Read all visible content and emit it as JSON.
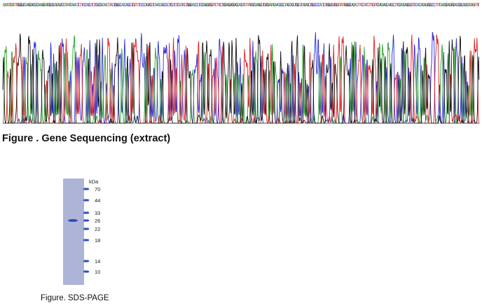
{
  "sequencing": {
    "sequence": "GAATTGATTTGGGGTCAAGGAGCCGAAAGGATGGCGCAGAGTCCATATCAAACTCTTCCCAGCTCTCGCGACAACTTACTGGGCCACCAGCCTGTTTTCCCCAGTGCTCAACCAGCCCCTGCTCTCCATCCTGGGAACCCTCCGAGGTGGTTCTTCCTGGAGGTGGAGCACGATTTATGCGAAGGCTGTGGATAGAACCGCCTAGCAGCTGGCTCAGAGCTGGCCCCACTCTGGGCGTGGTTATTGGGGCAGACTTTCCATCTTTGTTCGAGAAGCAAGCCTTCGACGAGGCGTTCCACCAGAGTGGCCCTTTCAACGGAGTGGACCGGCAGCGATAGTTTG",
    "caption": "Figure . Gene Sequencing (extract)",
    "colors": {
      "A": "#2ca02c",
      "C": "#2b2bd8",
      "G": "#111111",
      "T": "#e02020"
    }
  },
  "gel": {
    "unit": "kDa",
    "markers": [
      "70",
      "44",
      "33",
      "26",
      "22",
      "18",
      "14",
      "10"
    ],
    "sample_band_kda": 26,
    "caption": "Figure. SDS-PAGE",
    "gel_color": "#aeb4d6",
    "band_color": "#2a4fc4"
  }
}
